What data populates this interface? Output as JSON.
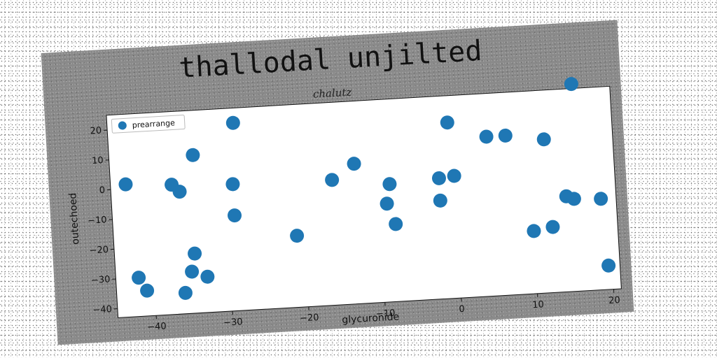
{
  "chart_data": {
    "type": "scatter",
    "title": "thallodal unjilted",
    "subtitle": "chalutz",
    "xlabel": "glycuronide",
    "ylabel": "outechoed",
    "xlim": [
      -45,
      21
    ],
    "ylim": [
      -43,
      25
    ],
    "xticks": [
      -40,
      -30,
      -20,
      -10,
      0,
      10,
      20
    ],
    "yticks": [
      -40,
      -30,
      -20,
      -10,
      0,
      10,
      20
    ],
    "xtick_labels": [
      "−40",
      "−30",
      "−20",
      "−10",
      "0",
      "10",
      "20"
    ],
    "ytick_labels": [
      "−40",
      "−30",
      "−20",
      "−10",
      "0",
      "10",
      "20"
    ],
    "grid": false,
    "legend_position": "top-left",
    "series": [
      {
        "name": "prearrange",
        "color": "#1f77b4",
        "points": [
          {
            "x": -43,
            "y": 1.5
          },
          {
            "x": -42,
            "y": -30
          },
          {
            "x": -41,
            "y": -34.5
          },
          {
            "x": -37,
            "y": 0.5
          },
          {
            "x": -36,
            "y": -2
          },
          {
            "x": -36,
            "y": -36
          },
          {
            "x": -35,
            "y": -29
          },
          {
            "x": -34.5,
            "y": -23
          },
          {
            "x": -34,
            "y": 10
          },
          {
            "x": -33,
            "y": -31
          },
          {
            "x": -29,
            "y": -0.5
          },
          {
            "x": -29,
            "y": -11
          },
          {
            "x": -28.5,
            "y": 20
          },
          {
            "x": -21,
            "y": -19
          },
          {
            "x": -16,
            "y": -1
          },
          {
            "x": -13,
            "y": 4
          },
          {
            "x": -9,
            "y": -10
          },
          {
            "x": -8.5,
            "y": -3.5
          },
          {
            "x": -8,
            "y": -17
          },
          {
            "x": -2,
            "y": -2.5
          },
          {
            "x": -2,
            "y": -10
          },
          {
            "x": -0.5,
            "y": 16
          },
          {
            "x": 0,
            "y": -2
          },
          {
            "x": 4.5,
            "y": 10.5
          },
          {
            "x": 7,
            "y": 10.5
          },
          {
            "x": 10,
            "y": -22
          },
          {
            "x": 12,
            "y": 8.5
          },
          {
            "x": 12.5,
            "y": -21
          },
          {
            "x": 14.5,
            "y": -11
          },
          {
            "x": 15.5,
            "y": -12
          },
          {
            "x": 16,
            "y": 26.5
          },
          {
            "x": 19,
            "y": -12.5
          },
          {
            "x": 19.5,
            "y": -35
          }
        ]
      }
    ]
  }
}
